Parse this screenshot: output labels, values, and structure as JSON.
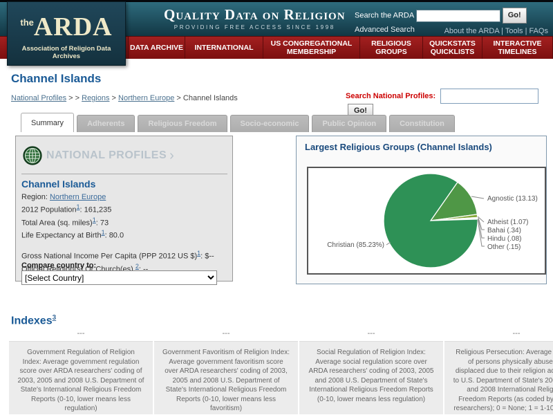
{
  "header": {
    "logo": {
      "the": "the",
      "arda": "ARDA",
      "tagline": "Association of Religion Data Archives"
    },
    "banner_title": "Quality Data on Religion",
    "banner_subtitle": "PROVIDING FREE ACCESS SINCE 1998",
    "search_label": "Search the ARDA",
    "go_button": "Go!",
    "advanced_link": "Advanced Search",
    "top_links": "About the ARDA | Tools | FAQs",
    "nav": [
      {
        "label": "DATA ARCHIVE"
      },
      {
        "label": "INTERNATIONAL"
      },
      {
        "label": "US CONGREGATIONAL MEMBERSHIP"
      },
      {
        "label": "RELIGIOUS GROUPS"
      },
      {
        "label": "QUICKSTATS QUICKLISTS"
      },
      {
        "label": "INTERACTIVE TIMELINES"
      }
    ]
  },
  "page": {
    "title": "Channel Islands",
    "breadcrumb": {
      "link1": "National Profiles",
      "sep1": " > > ",
      "link2": "Regions",
      "sep2": " > ",
      "link3": "Northern Europe",
      "sep3": " > ",
      "current": "Channel Islands"
    },
    "profile_search_label": "Search National Profiles:",
    "profile_search_go": "Go!"
  },
  "tabs": [
    {
      "label": "Summary",
      "active": true
    },
    {
      "label": "Adherents"
    },
    {
      "label": "Religious Freedom"
    },
    {
      "label": "Socio-economic"
    },
    {
      "label": "Public Opinion"
    },
    {
      "label": "Constitution"
    }
  ],
  "profile_panel": {
    "header": "NATIONAL PROFILES",
    "arrow": "›",
    "country": "Channel Islands",
    "region_label": "Region: ",
    "region_link": "Northern Europe",
    "rows": [
      {
        "label": "2012 Population",
        "sup": "1",
        "value": ": 161,235"
      },
      {
        "label": "Total Area (sq. miles)",
        "sup": "1",
        "value": ": 73"
      },
      {
        "label": "Life Expectancy at Birth",
        "sup": "1",
        "value": ": 80.0"
      },
      {
        "label": "Gross National Income Per Capita (PPP 2012 US $)",
        "sup": "1",
        "value": ": $--"
      },
      {
        "label": "Official Religion(s) Or Church(es) ",
        "sup": "2",
        "value": ": --"
      }
    ],
    "compare_label": "Compare country to:",
    "compare_value": "[Select Country]"
  },
  "chart_panel": {
    "title": "Largest Religious Groups (Channel Islands)"
  },
  "chart_data": {
    "type": "pie",
    "title": "Largest Religious Groups (Channel Islands)",
    "legend_position": "callout-labels",
    "slices": [
      {
        "label": "Christian",
        "value": 85.23,
        "display": "Christian (85.23%)",
        "color": "#2e9156"
      },
      {
        "label": "Agnostic",
        "value": 13.13,
        "display": "Agnostic (13.13)",
        "color": "#4f9746"
      },
      {
        "label": "Atheist",
        "value": 1.07,
        "display": "Atheist (1.07)",
        "color": "#86a83b"
      },
      {
        "label": "Bahai",
        "value": 0.34,
        "display": "Bahai (.34)",
        "color": "#a8bf4a"
      },
      {
        "label": "Hindu",
        "value": 0.08,
        "display": "Hindu (.08)",
        "color": "#5b8a3c"
      },
      {
        "label": "Other",
        "value": 0.15,
        "display": "Other (.15)",
        "color": "#c2d45e"
      }
    ]
  },
  "indexes": {
    "heading": "Indexes",
    "sup": "3",
    "columns": [
      {
        "value": "---",
        "description": "Government Regulation of Religion Index: Average government regulation score over ARDA researchers' coding of 2003, 2005 and 2008 U.S. Department of State's International Religious Freedom Reports (0-10, lower means less regulation)"
      },
      {
        "value": "---",
        "description": "Government Favoritism of Religion Index: Average government favoritism score over ARDA researchers' coding of 2003, 2005 and 2008 U.S. Department of State's International Religious Freedom Reports (0-10, lower means less favoritism)"
      },
      {
        "value": "---",
        "description": "Social Regulation of Religion Index: Average social regulation score over ARDA researchers' coding of 2003, 2005 and 2008 U.S. Department of State's International Religious Freedom Reports (0-10, lower means less regulation)"
      },
      {
        "value": "---",
        "description": "Religious Persecution: Average number of persons physically abused or displaced due to their religion according to U.S. Department of State's 2003, 2005 and 2008 International Religious Freedom Reports (as coded by ARDA researchers); 0 = None; 1 = 1-10; 2 = 11-20; 3 = 21-100; 4 = 101-500; 5 = 501-1000; 6 = 1001-5000; 7 = 5001-10000; 8 = 10001-50000; 9 = 50001-100000; 10 = greater than 100000."
      }
    ]
  }
}
